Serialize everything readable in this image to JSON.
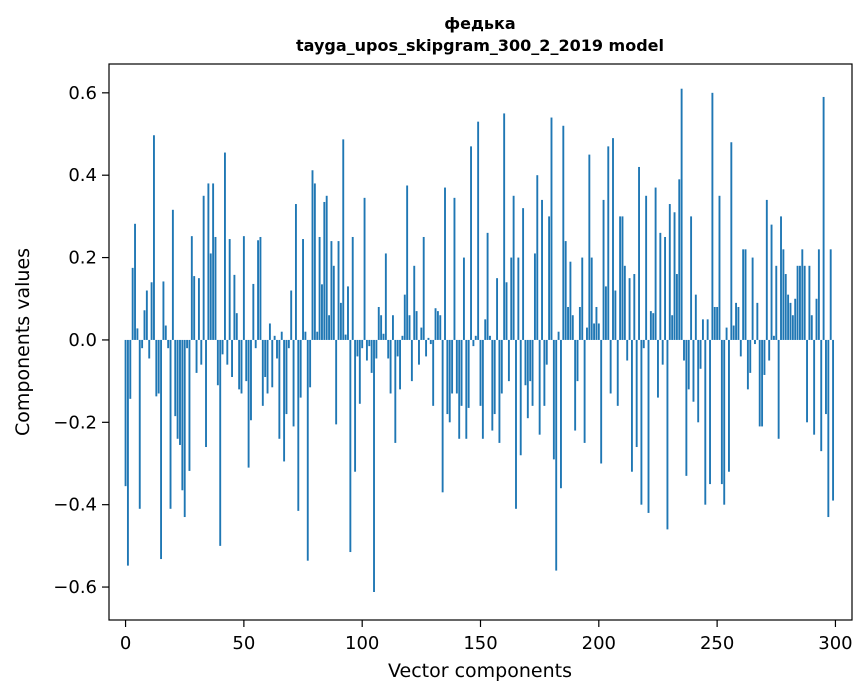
{
  "chart_data": {
    "type": "bar",
    "title": "федька",
    "subtitle": "tayga_upos_skipgram_300_2_2019 model",
    "xlabel": "Vector components",
    "ylabel": "Components values",
    "xlim": [
      -7,
      307
    ],
    "ylim": [
      -0.68,
      0.67
    ],
    "xticks": [
      0,
      50,
      100,
      150,
      200,
      250,
      300
    ],
    "xtick_labels": [
      "0",
      "50",
      "100",
      "150",
      "200",
      "250",
      "300"
    ],
    "yticks": [
      -0.6,
      -0.4,
      -0.2,
      0.0,
      0.2,
      0.4,
      0.6
    ],
    "ytick_labels": [
      "−0.6",
      "−0.4",
      "−0.2",
      "0.0",
      "0.2",
      "0.4",
      "0.6"
    ],
    "grid": false,
    "bar_color": "#1f77b4",
    "values": [
      -0.355,
      -0.548,
      -0.143,
      0.175,
      0.282,
      0.028,
      -0.41,
      -0.02,
      0.072,
      0.12,
      -0.045,
      0.14,
      0.497,
      -0.137,
      -0.13,
      -0.532,
      0.142,
      0.035,
      -0.02,
      -0.41,
      0.316,
      -0.185,
      -0.24,
      -0.255,
      -0.365,
      -0.43,
      -0.02,
      -0.318,
      0.252,
      0.155,
      -0.08,
      0.15,
      -0.06,
      0.35,
      -0.26,
      0.38,
      0.21,
      0.38,
      0.25,
      -0.11,
      -0.5,
      -0.035,
      0.455,
      -0.06,
      0.245,
      -0.09,
      0.158,
      0.065,
      -0.12,
      -0.13,
      0.252,
      -0.1,
      -0.31,
      -0.195,
      0.136,
      -0.02,
      0.242,
      0.25,
      -0.16,
      -0.09,
      -0.13,
      0.04,
      -0.115,
      0.01,
      -0.045,
      -0.24,
      0.02,
      -0.295,
      -0.18,
      -0.02,
      0.12,
      -0.21,
      0.33,
      -0.415,
      -0.14,
      0.245,
      0.02,
      -0.536,
      -0.115,
      0.412,
      0.38,
      0.02,
      0.25,
      0.135,
      0.335,
      0.35,
      0.06,
      0.24,
      0.18,
      -0.205,
      0.24,
      0.09,
      0.487,
      0.013,
      0.13,
      -0.515,
      0.25,
      -0.32,
      -0.04,
      -0.155,
      -0.02,
      0.345,
      -0.05,
      -0.015,
      -0.08,
      -0.612,
      -0.045,
      0.08,
      0.06,
      0.015,
      0.21,
      -0.045,
      -0.13,
      0.06,
      -0.25,
      -0.04,
      -0.12,
      0.01,
      0.11,
      0.375,
      0.06,
      -0.1,
      0.18,
      0.07,
      -0.06,
      0.03,
      0.25,
      -0.04,
      0.005,
      -0.01,
      -0.16,
      0.077,
      0.07,
      0.06,
      -0.37,
      0.37,
      -0.18,
      -0.2,
      -0.13,
      0.345,
      -0.13,
      -0.24,
      -0.16,
      0.2,
      -0.24,
      -0.165,
      0.47,
      -0.015,
      0.01,
      0.53,
      -0.16,
      -0.24,
      0.05,
      0.26,
      0.01,
      -0.22,
      -0.18,
      0.15,
      -0.25,
      -0.13,
      0.55,
      0.14,
      -0.1,
      0.2,
      0.35,
      -0.41,
      0.2,
      -0.28,
      0.32,
      -0.11,
      -0.19,
      -0.1,
      -0.16,
      0.21,
      0.4,
      -0.23,
      0.34,
      -0.16,
      -0.06,
      0.3,
      0.54,
      -0.29,
      -0.56,
      0.02,
      -0.36,
      0.52,
      0.24,
      0.08,
      0.19,
      0.06,
      -0.22,
      -0.1,
      0.08,
      0.2,
      -0.25,
      0.03,
      0.45,
      0.2,
      0.04,
      0.08,
      0.04,
      -0.3,
      0.34,
      0.13,
      0.47,
      -0.13,
      0.49,
      0.12,
      -0.16,
      0.3,
      0.3,
      0.18,
      -0.05,
      0.15,
      -0.32,
      0.16,
      -0.26,
      0.42,
      -0.4,
      -0.02,
      0.35,
      -0.42,
      0.07,
      0.065,
      0.37,
      -0.14,
      0.26,
      -0.06,
      0.25,
      -0.46,
      0.33,
      0.06,
      0.31,
      0.16,
      0.39,
      0.61,
      -0.05,
      -0.33,
      -0.12,
      0.3,
      -0.15,
      0.11,
      -0.2,
      -0.07,
      0.05,
      -0.4,
      0.05,
      -0.35,
      0.6,
      0.08,
      0.08,
      0.35,
      -0.35,
      -0.4,
      0.03,
      -0.32,
      0.48,
      0.035,
      0.09,
      0.08,
      -0.04,
      0.22,
      0.22,
      -0.12,
      -0.08,
      0.2,
      -0.01,
      0.09,
      -0.21,
      -0.21,
      -0.085,
      0.34,
      -0.05,
      0.28,
      0.01,
      0.18,
      -0.24,
      0.3,
      0.22,
      0.16,
      0.11,
      0.09,
      0.06,
      0.1,
      0.18,
      0.18,
      0.22,
      0.18,
      -0.2,
      0.18,
      0.06,
      -0.23,
      0.1,
      0.22,
      -0.27,
      0.59,
      -0.18,
      -0.43,
      0.22,
      -0.39
    ]
  }
}
